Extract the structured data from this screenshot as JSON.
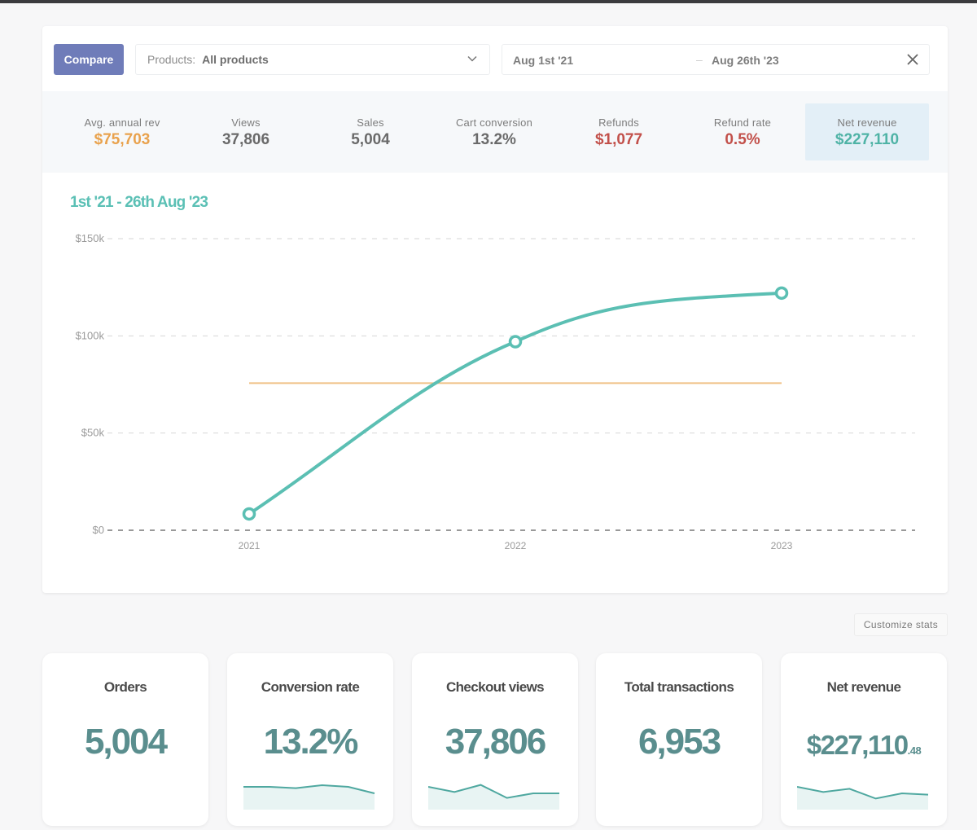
{
  "toolbar": {
    "compare_label": "Compare",
    "products_label": "Products:",
    "products_value": "All products",
    "date_from": "Aug 1st '21",
    "date_separator": "–",
    "date_to": "Aug 26th '23"
  },
  "stats": [
    {
      "title": "Avg. annual rev",
      "value": "$75,703",
      "color": "#e9a24d"
    },
    {
      "title": "Views",
      "value": "37,806",
      "color": "#6a6a6a"
    },
    {
      "title": "Sales",
      "value": "5,004",
      "color": "#6a6a6a"
    },
    {
      "title": "Cart conversion",
      "value": "13.2%",
      "color": "#6a6a6a"
    },
    {
      "title": "Refunds",
      "value": "$1,077",
      "color": "#c2504a"
    },
    {
      "title": "Refund rate",
      "value": "0.5%",
      "color": "#c2504a"
    },
    {
      "title": "Net revenue",
      "value": "$227,110",
      "color": "#4fb3a6",
      "active": true
    }
  ],
  "chart_data": {
    "type": "line",
    "title": "1st '21 - 26th Aug '23",
    "xlabel": "",
    "ylabel": "",
    "x": [
      "2021",
      "2022",
      "2023"
    ],
    "series": [
      {
        "name": "Net revenue",
        "values": [
          8400,
          97000,
          122000
        ],
        "color": "#5bbfb3"
      },
      {
        "name": "Avg. annual rev",
        "values": [
          75703,
          75703,
          75703
        ],
        "color": "#f0c186"
      }
    ],
    "yticks": [
      0,
      50000,
      100000,
      150000
    ],
    "ytick_labels": [
      "$0",
      "$50k",
      "$100k",
      "$150k"
    ],
    "ylim": [
      0,
      150000
    ],
    "grid": true,
    "legend": "none"
  },
  "customize_label": "Customize stats",
  "cards": [
    {
      "title": "Orders",
      "value": "5,004",
      "spark": null
    },
    {
      "title": "Conversion rate",
      "value": "13.2%",
      "spark": [
        5,
        5,
        4.6,
        5.5,
        5,
        3
      ]
    },
    {
      "title": "Checkout views",
      "value": "37,806",
      "spark": [
        5,
        3.4,
        5.6,
        1.6,
        3,
        3
      ]
    },
    {
      "title": "Total transactions",
      "value": "6,953",
      "spark": null
    },
    {
      "title": "Net revenue",
      "value": "$227,110",
      "cents": ".48",
      "spark": [
        5,
        3.4,
        4.4,
        1.4,
        3,
        2.6
      ]
    }
  ]
}
